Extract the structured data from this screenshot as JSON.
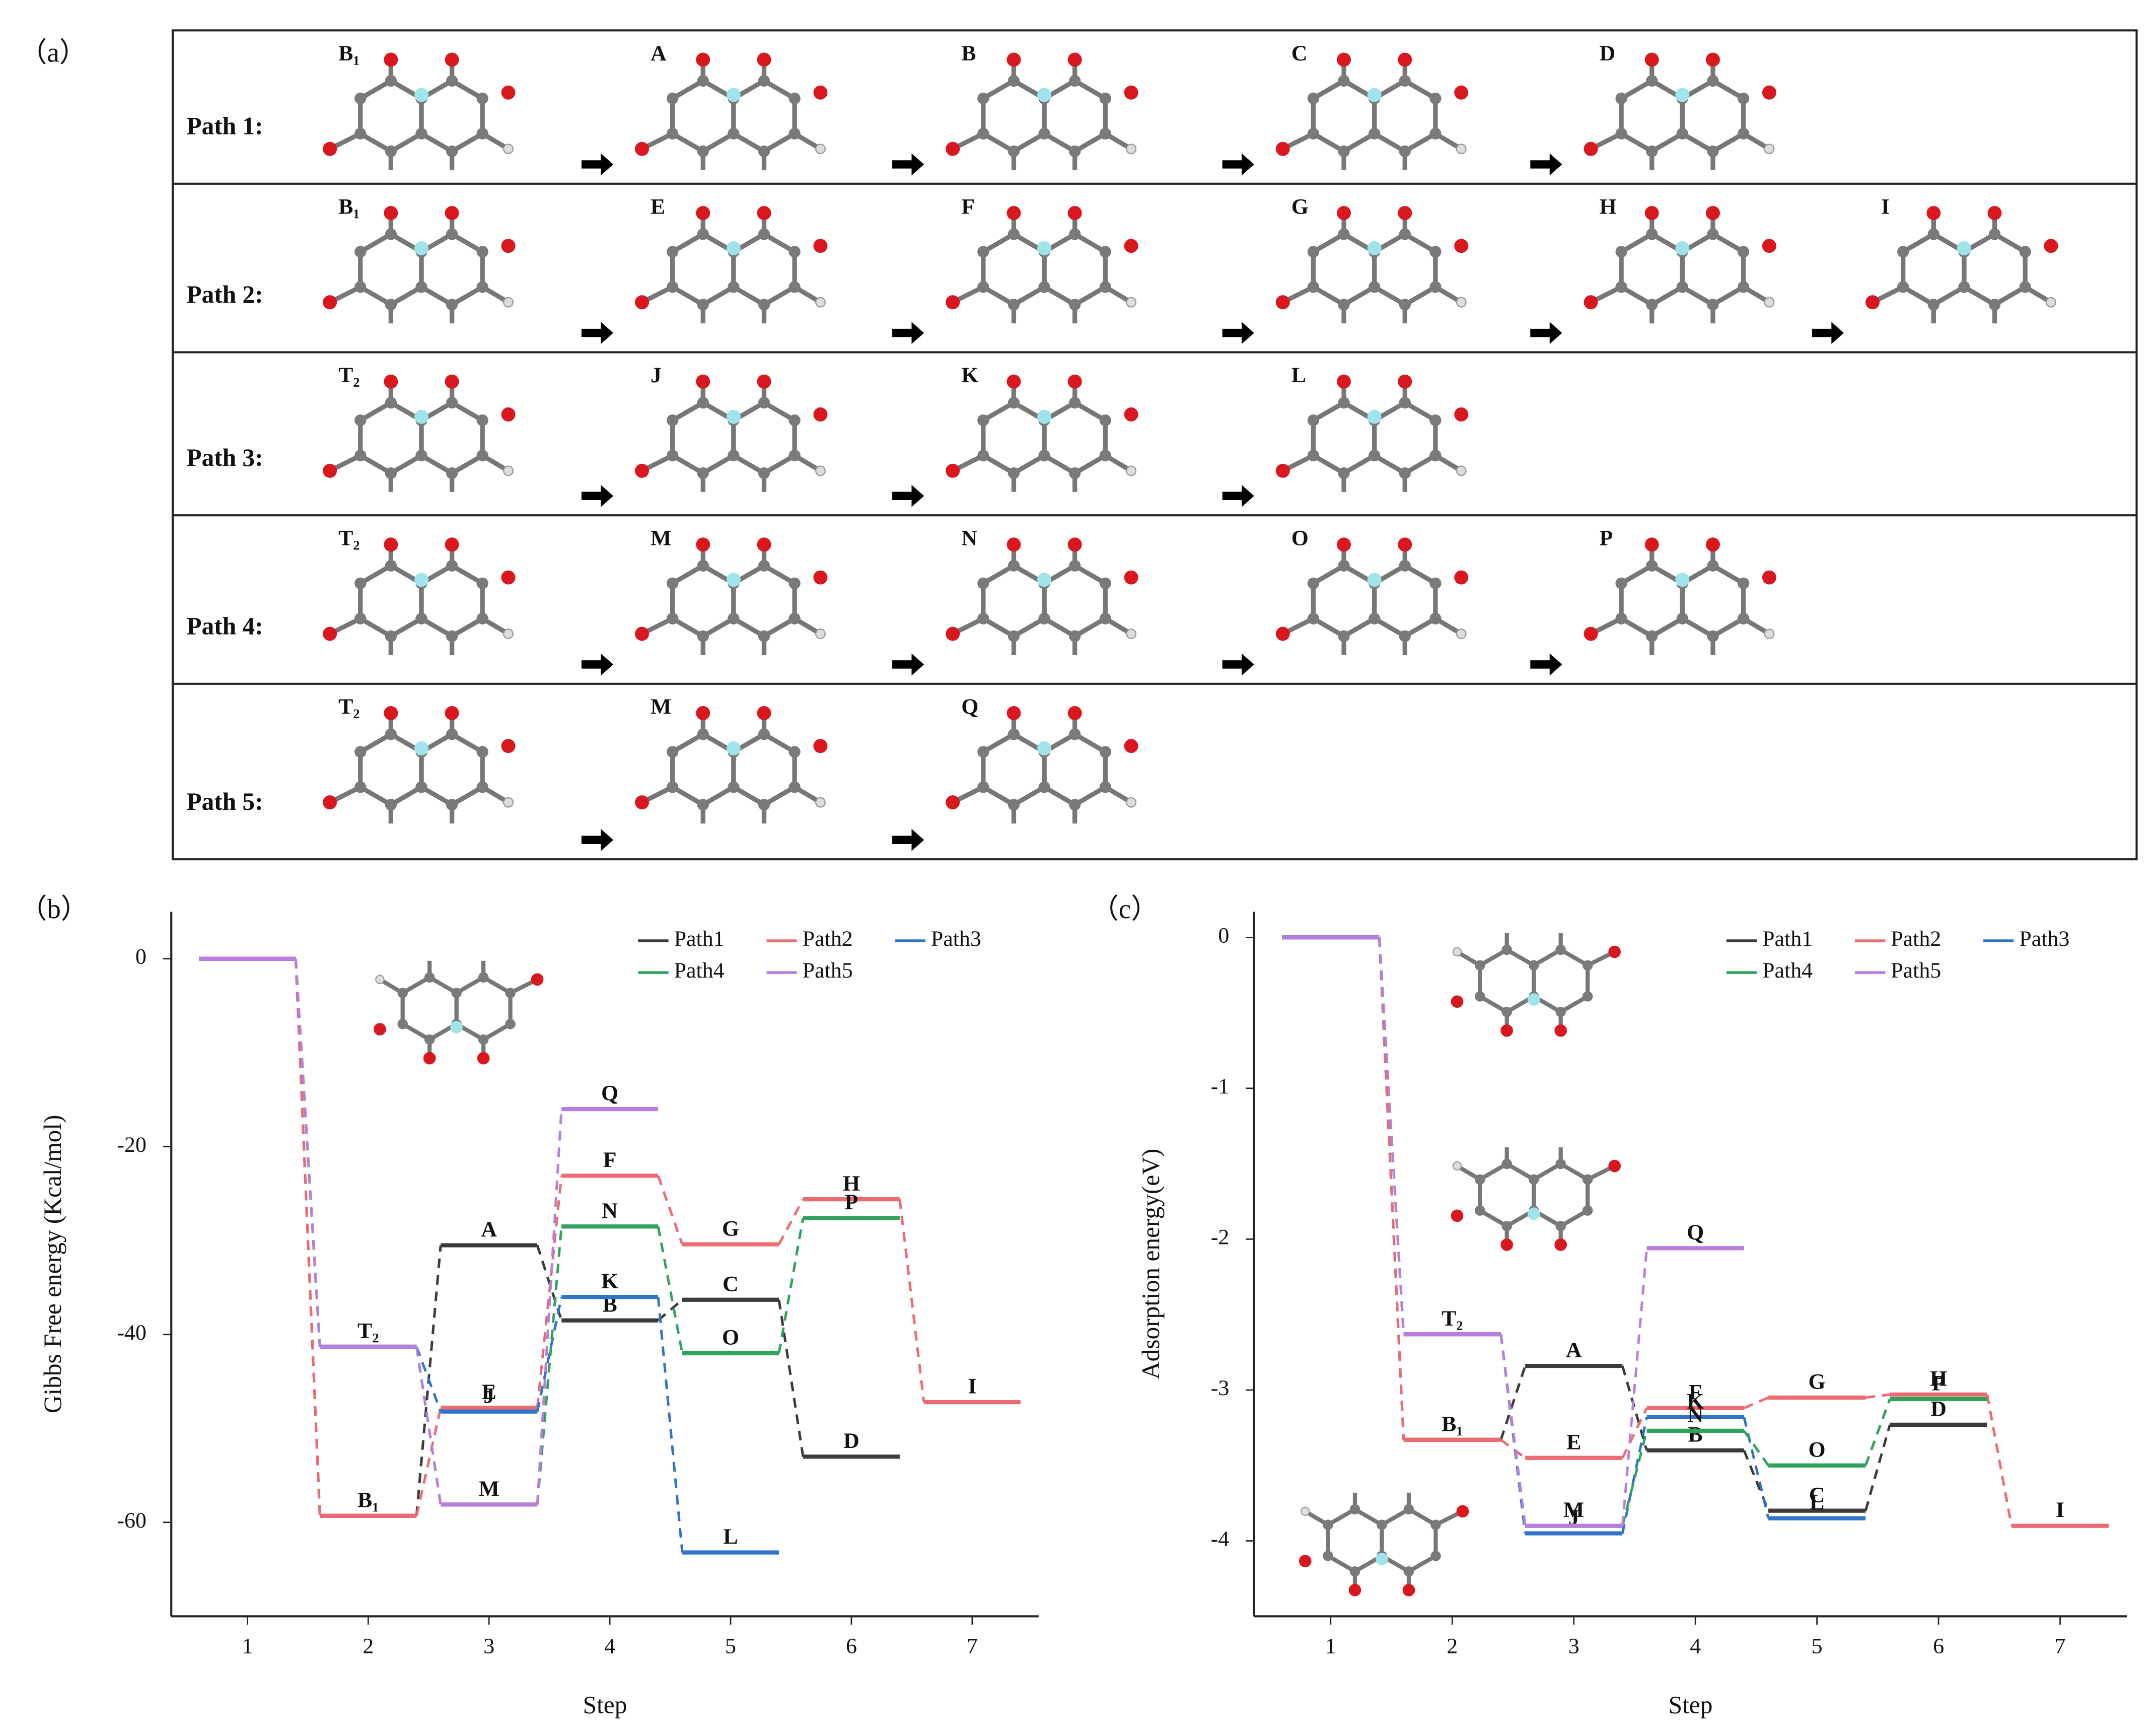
{
  "panel_a": {
    "label": "（a）",
    "rows": [
      {
        "name": "Path 1:",
        "states": [
          "B₁",
          "A",
          "B",
          "C",
          "D"
        ]
      },
      {
        "name": "Path 2:",
        "states": [
          "B₁",
          "E",
          "F",
          "G",
          "H",
          "I"
        ]
      },
      {
        "name": "Path 3:",
        "states": [
          "T₂",
          "J",
          "K",
          "L"
        ]
      },
      {
        "name": "Path 4:",
        "states": [
          "T₂",
          "M",
          "N",
          "O",
          "P"
        ]
      },
      {
        "name": "Path 5:",
        "states": [
          "T₂",
          "M",
          "Q"
        ]
      }
    ]
  },
  "chart_data": [
    {
      "type": "energy_level",
      "panel_label": "（b）",
      "x_label": "Step",
      "y_label": "Gibbs Free energy (Kcal/mol)",
      "x": [
        1,
        2,
        3,
        4,
        5,
        6,
        7
      ],
      "xlim": [
        0.37,
        7.55
      ],
      "xticks": [
        1,
        2,
        3,
        4,
        5,
        6,
        7
      ],
      "ylim": [
        -70,
        5
      ],
      "yticks": [
        0,
        -20,
        -40,
        -60
      ],
      "legend": "upper right",
      "series": [
        {
          "name": "Path1",
          "color": "#3a3a3a",
          "values": [
            0,
            -59.3,
            -30.5,
            -38.5,
            -36.3,
            -53,
            null
          ],
          "labels": [
            null,
            "B₁",
            "A",
            "B",
            "C",
            "D",
            null
          ]
        },
        {
          "name": "Path2",
          "color": "#ec6b70",
          "values": [
            0,
            -59.3,
            -47.8,
            -23.1,
            -30.4,
            -25.6,
            -47.2
          ],
          "labels": [
            null,
            null,
            "E",
            "F",
            "G",
            "H",
            "I"
          ]
        },
        {
          "name": "Path3",
          "color": "#2f74c9",
          "values": [
            0,
            -41.3,
            -48.2,
            -36,
            -63.2,
            null,
            null
          ],
          "labels": [
            null,
            "T₂",
            "J",
            "K",
            "L",
            null,
            null
          ]
        },
        {
          "name": "Path4",
          "color": "#2ea35d",
          "values": [
            0,
            -41.3,
            -58.1,
            -28.5,
            -42,
            -27.6,
            null
          ],
          "labels": [
            null,
            null,
            "M",
            "N",
            "O",
            "P",
            null
          ]
        },
        {
          "name": "Path5",
          "color": "#b77ede",
          "values": [
            0,
            -41.3,
            -58.1,
            -16,
            null,
            null,
            null
          ],
          "labels": [
            null,
            null,
            null,
            "Q",
            null,
            null,
            null
          ]
        }
      ]
    },
    {
      "type": "energy_level",
      "panel_label": "（c）",
      "x_label": "Step",
      "y_label": "Adsorption energy(eV)",
      "x": [
        1,
        2,
        3,
        4,
        5,
        6,
        7
      ],
      "xlim": [
        0.37,
        7.55
      ],
      "xticks": [
        1,
        2,
        3,
        4,
        5,
        6,
        7
      ],
      "ylim": [
        -4.5,
        0.17
      ],
      "yticks": [
        0,
        -1,
        -2,
        -3,
        -4
      ],
      "legend": "upper right",
      "series": [
        {
          "name": "Path1",
          "color": "#3a3a3a",
          "values": [
            0,
            -3.33,
            -2.84,
            -3.4,
            -3.8,
            -3.23,
            null
          ],
          "labels": [
            null,
            "B₁",
            "A",
            "B",
            "C",
            "D",
            null
          ]
        },
        {
          "name": "Path2",
          "color": "#ec6b70",
          "values": [
            0,
            -3.33,
            -3.45,
            -3.12,
            -3.05,
            -3.03,
            -3.9
          ],
          "labels": [
            null,
            null,
            "E",
            "F",
            "G",
            "H",
            "I"
          ]
        },
        {
          "name": "Path3",
          "color": "#2f74c9",
          "values": [
            0,
            -2.63,
            -3.95,
            -3.18,
            -3.85,
            null,
            null
          ],
          "labels": [
            null,
            "T₂",
            "J",
            "K",
            "L",
            null,
            null
          ]
        },
        {
          "name": "Path4",
          "color": "#2ea35d",
          "values": [
            0,
            -2.63,
            -3.9,
            -3.27,
            -3.5,
            -3.06,
            null
          ],
          "labels": [
            null,
            null,
            "M",
            "N",
            "O",
            "P",
            null
          ]
        },
        {
          "name": "Path5",
          "color": "#b77ede",
          "values": [
            0,
            -2.63,
            -3.9,
            -2.06,
            null,
            null,
            null
          ],
          "labels": [
            null,
            null,
            null,
            "Q",
            null,
            null,
            null
          ]
        }
      ]
    }
  ]
}
